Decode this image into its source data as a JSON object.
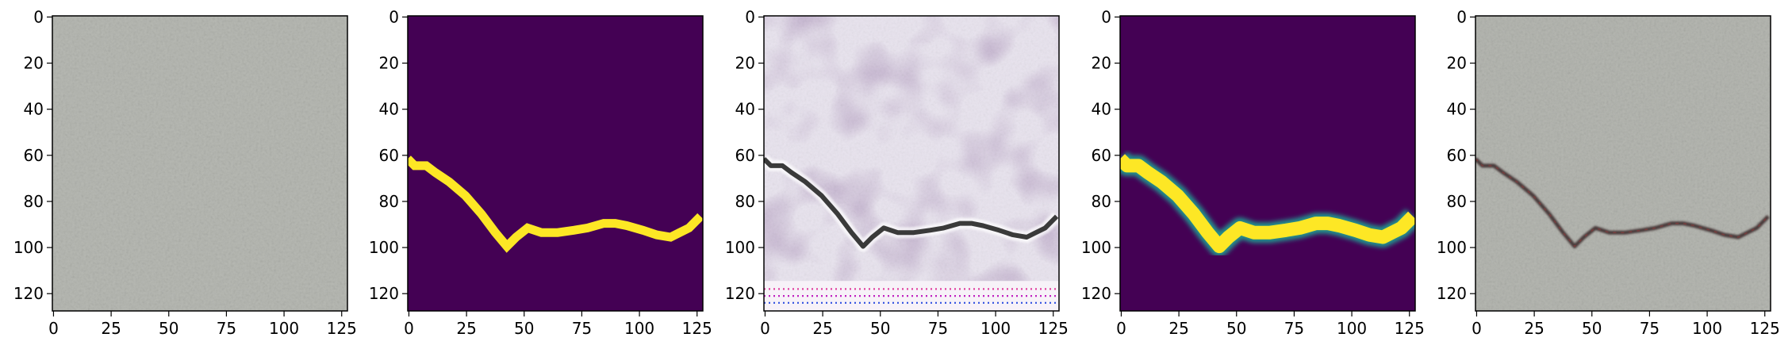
{
  "figure": {
    "background": "#ffffff",
    "panels": [
      {
        "name": "input-texture",
        "kind": "texture",
        "base_color": "#b7b9b3",
        "xticks": [
          "0",
          "25",
          "50",
          "75",
          "100",
          "125"
        ],
        "yticks": [
          "0",
          "20",
          "40",
          "60",
          "80",
          "100",
          "120"
        ]
      },
      {
        "name": "ground-truth-mask",
        "kind": "mask",
        "background_color": "#440154",
        "crack_color": "#fde725",
        "xticks": [
          "0",
          "25",
          "50",
          "75",
          "100",
          "125"
        ],
        "yticks": [
          "0",
          "20",
          "40",
          "60",
          "80",
          "100",
          "120"
        ]
      },
      {
        "name": "generated-texture",
        "kind": "generated",
        "base_color": "#e8e3ee",
        "blob_color": "#b8a2c3",
        "crack_color": "#3a3a3a",
        "xticks": [
          "0",
          "25",
          "50",
          "75",
          "100",
          "125"
        ],
        "yticks": [
          "0",
          "20",
          "40",
          "60",
          "80",
          "100",
          "120"
        ]
      },
      {
        "name": "predicted-mask",
        "kind": "soft-mask",
        "background_color": "#440154",
        "crack_color": "#fde725",
        "edge_color": "#21918c",
        "xticks": [
          "0",
          "25",
          "50",
          "75",
          "100",
          "125"
        ],
        "yticks": [
          "0",
          "20",
          "40",
          "60",
          "80",
          "100",
          "120"
        ]
      },
      {
        "name": "overlay-texture",
        "kind": "overlay",
        "base_color": "#b5b7b1",
        "crack_color": "#4a3a3a",
        "xticks": [
          "0",
          "25",
          "50",
          "75",
          "100",
          "125"
        ],
        "yticks": [
          "0",
          "20",
          "40",
          "60",
          "80",
          "100",
          "120"
        ]
      }
    ],
    "crack_path": [
      [
        0,
        62
      ],
      [
        3,
        65
      ],
      [
        8,
        65
      ],
      [
        12,
        68
      ],
      [
        18,
        72
      ],
      [
        25,
        78
      ],
      [
        32,
        86
      ],
      [
        38,
        94
      ],
      [
        43,
        100
      ],
      [
        47,
        96
      ],
      [
        52,
        92
      ],
      [
        58,
        94
      ],
      [
        65,
        94
      ],
      [
        72,
        93
      ],
      [
        78,
        92
      ],
      [
        85,
        90
      ],
      [
        90,
        90
      ],
      [
        95,
        91
      ],
      [
        102,
        93
      ],
      [
        108,
        95
      ],
      [
        114,
        96
      ],
      [
        118,
        94
      ],
      [
        122,
        92
      ],
      [
        127,
        87
      ]
    ]
  }
}
